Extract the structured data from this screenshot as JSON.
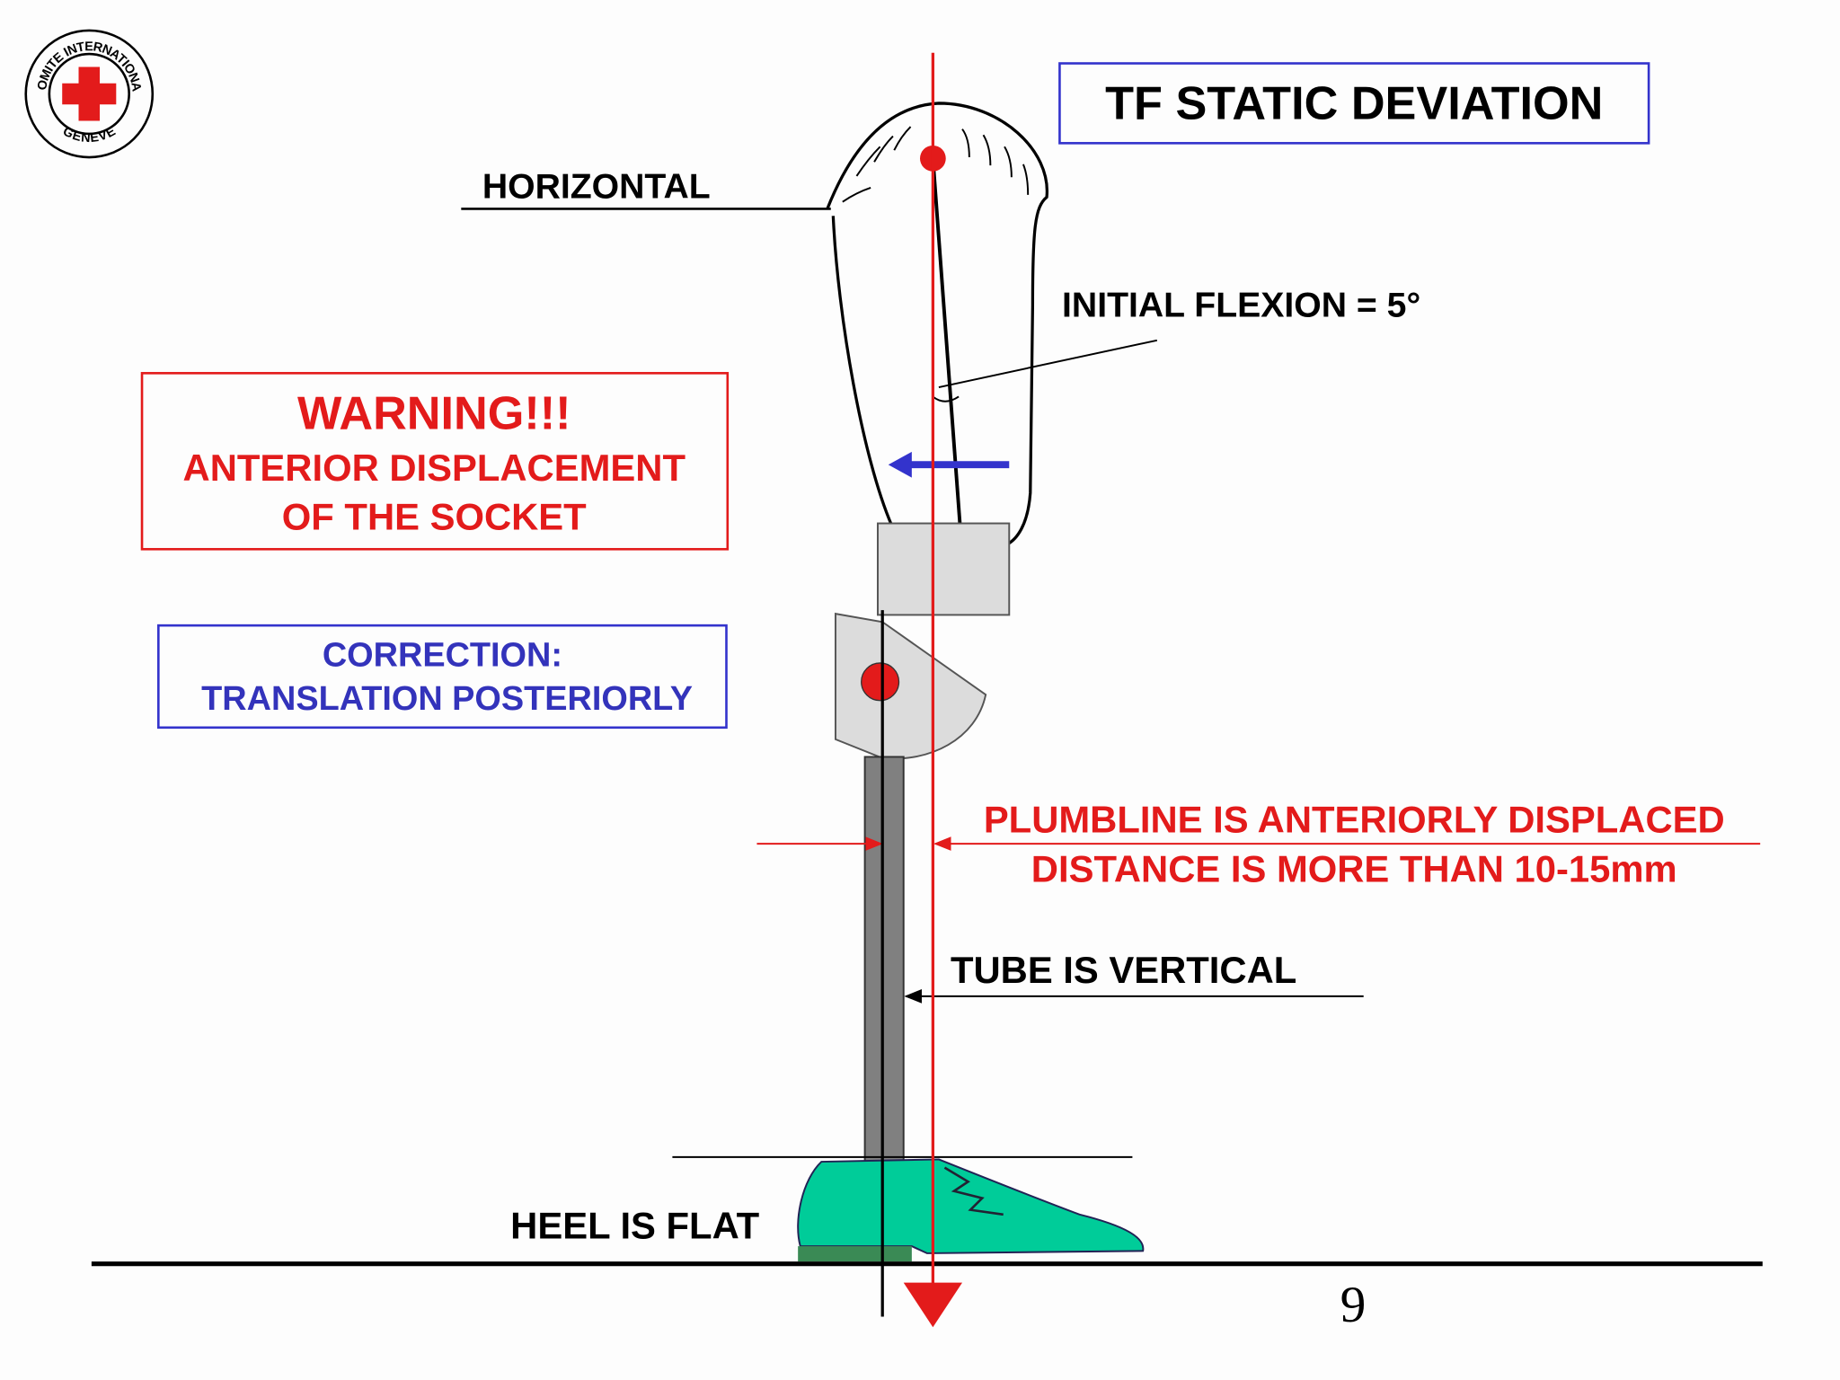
{
  "logo": {
    "top": "COMITE INTERNATIONAL",
    "bottom": "GENEVE"
  },
  "title": "TF STATIC DEVIATION",
  "labels": {
    "horizontal": "HORIZONTAL",
    "initial_flexion": "INITIAL FLEXION = 5°",
    "tube": "TUBE IS VERTICAL",
    "heel": "HEEL IS FLAT"
  },
  "warning": {
    "heading": "WARNING!!!",
    "lines": [
      "ANTERIOR DISPLACEMENT",
      "OF THE SOCKET"
    ]
  },
  "correction": {
    "lines": [
      "CORRECTION:",
      "TRANSLATION POSTERIORLY"
    ]
  },
  "plumbline": {
    "lines": [
      "PLUMBLINE IS ANTERIORLY DISPLACED",
      "DISTANCE IS MORE THAN 10-15mm"
    ]
  },
  "page_number": "9"
}
